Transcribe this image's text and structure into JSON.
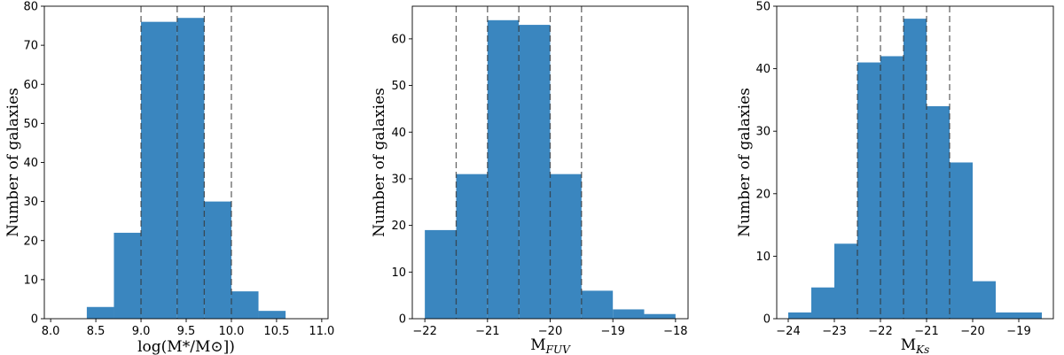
{
  "chart_data": [
    {
      "type": "bar",
      "title": "",
      "xlabel": "log(M*/M⊙])",
      "ylabel": "Number of galaxies",
      "xlim": [
        7.93,
        11.07
      ],
      "ylim": [
        0,
        80
      ],
      "xticks": [
        8.0,
        8.5,
        9.0,
        9.5,
        10.0,
        10.5,
        11.0
      ],
      "xtick_labels": [
        "8.0",
        "8.5",
        "9.0",
        "9.5",
        "10.0",
        "10.5",
        "11.0"
      ],
      "yticks": [
        0,
        10,
        20,
        30,
        40,
        50,
        60,
        70,
        80
      ],
      "bins": [
        {
          "x0": 8.4,
          "x1": 8.7,
          "count": 3
        },
        {
          "x0": 8.7,
          "x1": 9.0,
          "count": 22
        },
        {
          "x0": 9.0,
          "x1": 9.4,
          "count": 76
        },
        {
          "x0": 9.4,
          "x1": 9.7,
          "count": 77
        },
        {
          "x0": 9.7,
          "x1": 10.0,
          "count": 30
        },
        {
          "x0": 10.0,
          "x1": 10.3,
          "count": 7
        },
        {
          "x0": 10.3,
          "x1": 10.6,
          "count": 2
        }
      ],
      "dashed_lines_x": [
        9.0,
        9.4,
        9.7,
        10.0
      ],
      "grid": false
    },
    {
      "type": "bar",
      "title": "",
      "xlabel": "M_FUV",
      "ylabel": "Number of galaxies",
      "xlim": [
        -22.2,
        -17.8
      ],
      "ylim": [
        0,
        67
      ],
      "xticks": [
        -22,
        -21,
        -20,
        -19,
        -18
      ],
      "xtick_labels": [
        "−22",
        "−21",
        "−20",
        "−19",
        "−18"
      ],
      "yticks": [
        0,
        10,
        20,
        30,
        40,
        50,
        60
      ],
      "bins": [
        {
          "x0": -22.0,
          "x1": -21.5,
          "count": 19
        },
        {
          "x0": -21.5,
          "x1": -21.0,
          "count": 31
        },
        {
          "x0": -21.0,
          "x1": -20.5,
          "count": 64
        },
        {
          "x0": -20.5,
          "x1": -20.0,
          "count": 63
        },
        {
          "x0": -20.0,
          "x1": -19.5,
          "count": 31
        },
        {
          "x0": -19.5,
          "x1": -19.0,
          "count": 6
        },
        {
          "x0": -19.0,
          "x1": -18.5,
          "count": 2
        },
        {
          "x0": -18.5,
          "x1": -18.0,
          "count": 1
        }
      ],
      "dashed_lines_x": [
        -21.5,
        -21.0,
        -20.5,
        -20.0,
        -19.5
      ],
      "grid": false
    },
    {
      "type": "bar",
      "title": "",
      "xlabel": "M_Ks",
      "ylabel": "Number of galaxies",
      "xlim": [
        -24.25,
        -18.25
      ],
      "ylim": [
        0,
        50
      ],
      "xticks": [
        -24,
        -23,
        -22,
        -21,
        -20,
        -19
      ],
      "xtick_labels": [
        "−24",
        "−23",
        "−22",
        "−21",
        "−20",
        "−19"
      ],
      "yticks": [
        0,
        10,
        20,
        30,
        40,
        50
      ],
      "bins": [
        {
          "x0": -24.0,
          "x1": -23.5,
          "count": 1
        },
        {
          "x0": -23.5,
          "x1": -23.0,
          "count": 5
        },
        {
          "x0": -23.0,
          "x1": -22.5,
          "count": 12
        },
        {
          "x0": -22.5,
          "x1": -22.0,
          "count": 41
        },
        {
          "x0": -22.0,
          "x1": -21.5,
          "count": 42
        },
        {
          "x0": -21.5,
          "x1": -21.0,
          "count": 48
        },
        {
          "x0": -21.0,
          "x1": -20.5,
          "count": 34
        },
        {
          "x0": -20.5,
          "x1": -20.0,
          "count": 25
        },
        {
          "x0": -20.0,
          "x1": -19.5,
          "count": 6
        },
        {
          "x0": -19.5,
          "x1": -19.0,
          "count": 1
        },
        {
          "x0": -19.0,
          "x1": -18.5,
          "count": 1
        }
      ],
      "dashed_lines_x": [
        -22.5,
        -22.0,
        -21.5,
        -21.0,
        -20.5
      ],
      "grid": false
    }
  ],
  "colors": {
    "bar": "#3a86bf",
    "dashed_line": "#333333",
    "axis": "#000000"
  }
}
